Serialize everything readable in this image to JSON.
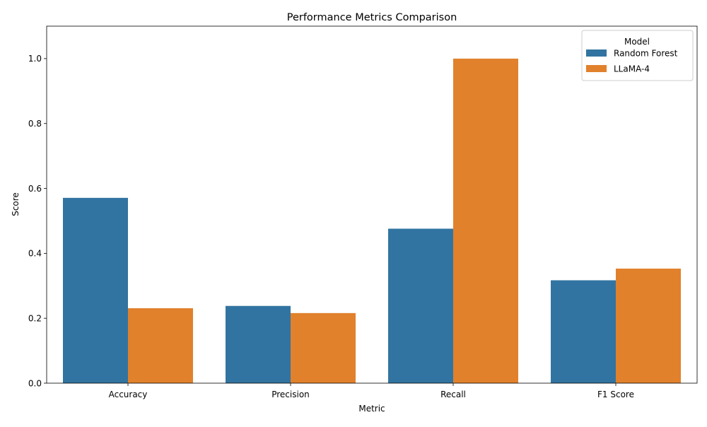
{
  "chart_data": {
    "type": "bar",
    "title": "Performance Metrics Comparison",
    "xlabel": "Metric",
    "ylabel": "Score",
    "categories": [
      "Accuracy",
      "Precision",
      "Recall",
      "F1 Score"
    ],
    "series": [
      {
        "name": "Random Forest",
        "values": [
          0.571,
          0.238,
          0.476,
          0.317
        ],
        "color": "#3274a1"
      },
      {
        "name": "LLaMA-4",
        "values": [
          0.231,
          0.216,
          1.0,
          0.353
        ],
        "color": "#e1812c"
      }
    ],
    "ylim": [
      0,
      1.1
    ],
    "yticks": [
      0.0,
      0.2,
      0.4,
      0.6,
      0.8,
      1.0
    ],
    "ytick_labels": [
      "0.0",
      "0.2",
      "0.4",
      "0.6",
      "0.8",
      "1.0"
    ],
    "legend": {
      "title": "Model",
      "position": "top-right"
    },
    "grid": false
  }
}
